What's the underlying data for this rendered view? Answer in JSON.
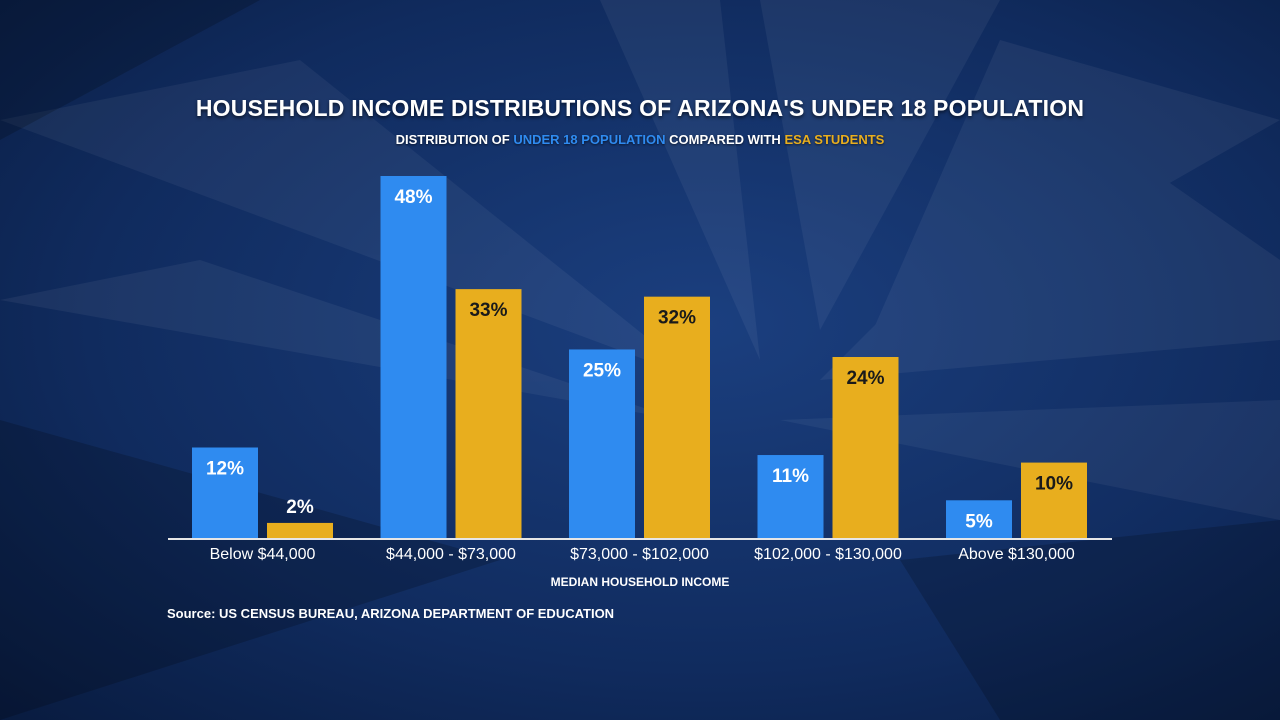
{
  "title": "HOUSEHOLD INCOME DISTRIBUTIONS OF ARIZONA'S UNDER 18 POPULATION",
  "subtitle": {
    "prefix": "DISTRIBUTION OF ",
    "series1": "UNDER 18 POPULATION",
    "middle": " COMPARED WITH ",
    "series2": "ESA STUDENTS"
  },
  "source": "Source: US CENSUS BUREAU, ARIZONA DEPARTMENT OF EDUCATION",
  "colors": {
    "series1": "#2f8bf0",
    "series2": "#e8ae1e",
    "label1": "#ffffff",
    "label2": "#1a1a1a"
  },
  "chart_data": {
    "type": "bar",
    "title": "HOUSEHOLD INCOME DISTRIBUTIONS OF ARIZONA'S UNDER 18 POPULATION",
    "xlabel": "MEDIAN HOUSEHOLD INCOME",
    "ylabel": "",
    "categories": [
      "Below $44,000",
      "$44,000 - $73,000",
      "$73,000 - $102,000",
      "$102,000 - $130,000",
      "Above $130,000"
    ],
    "series": [
      {
        "name": "UNDER 18 POPULATION",
        "values": [
          12,
          48,
          25,
          11,
          5
        ],
        "labels": [
          "12%",
          "48%",
          "25%",
          "11%",
          "5%"
        ]
      },
      {
        "name": "ESA STUDENTS",
        "values": [
          2,
          33,
          32,
          24,
          10
        ],
        "labels": [
          "2%",
          "33%",
          "32%",
          "24%",
          "10%"
        ]
      }
    ],
    "ylim": [
      0,
      48
    ],
    "grid": false,
    "legend": "subtitle"
  }
}
